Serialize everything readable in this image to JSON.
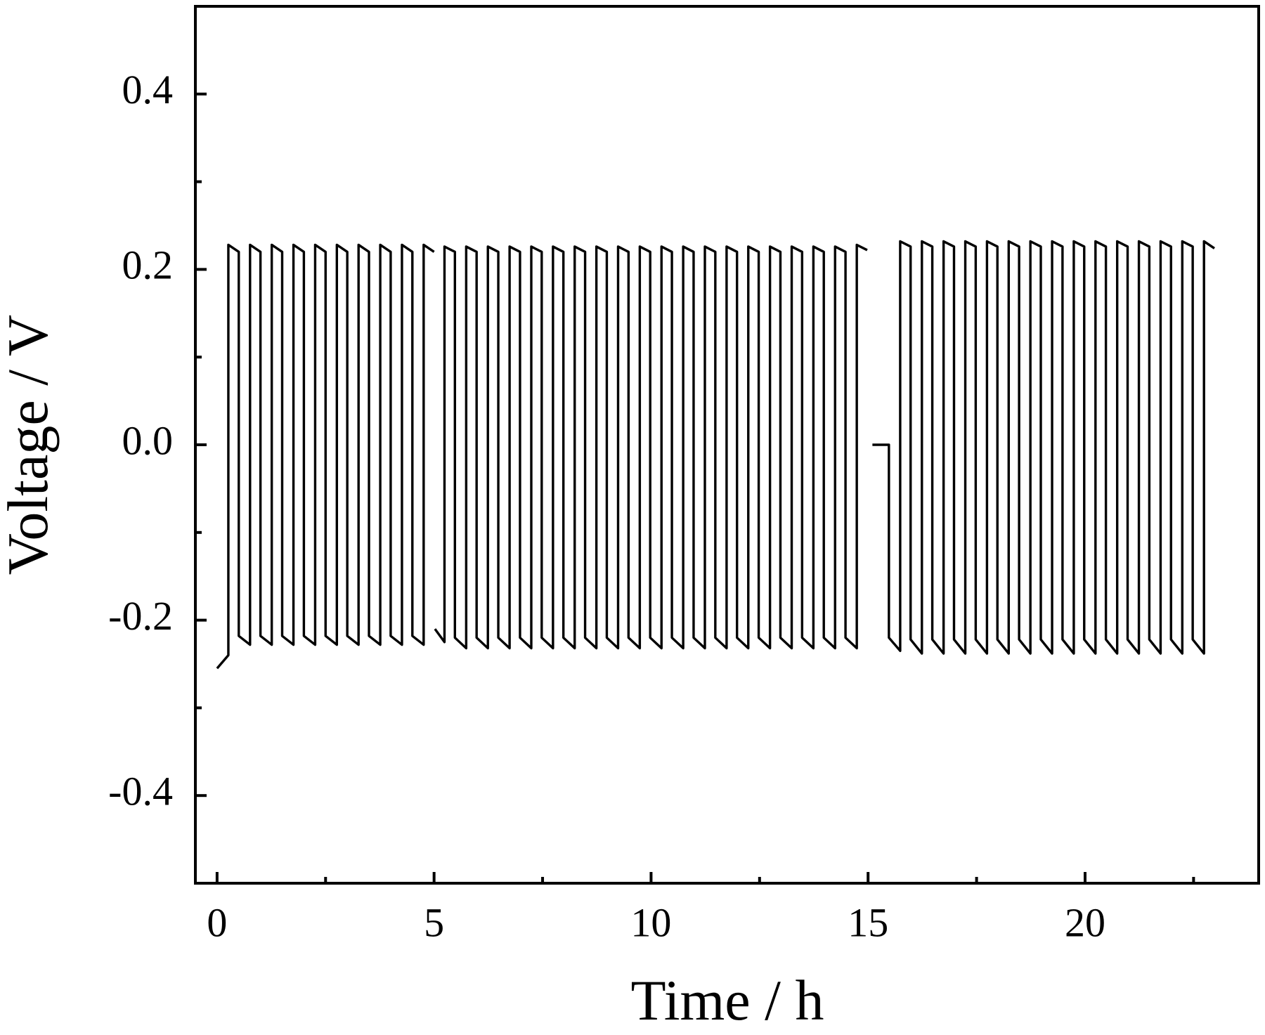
{
  "chart_data": {
    "type": "line",
    "x_label": "Time / h",
    "y_label": "Voltage / V",
    "xlim": [
      -0.5,
      24
    ],
    "ylim": [
      -0.5,
      0.5
    ],
    "xticks": [
      0,
      5,
      10,
      15,
      20
    ],
    "xminorticks": [
      2.5,
      7.5,
      12.5,
      17.5,
      22.5
    ],
    "yticks": [
      0.4,
      0.2,
      {
        "value": 0,
        "label": "0.0"
      },
      -0.2,
      -0.4
    ],
    "yminorticks": [
      -0.3,
      -0.1,
      0.1,
      0.3
    ],
    "series": [
      {
        "color": "#000000",
        "x": [
          0,
          0.26,
          0.26,
          0.5,
          0.5,
          0.76,
          0.76,
          1.0,
          1.0,
          1.26,
          1.26,
          1.5,
          1.5,
          1.76,
          1.76,
          2.0,
          2.0,
          2.26,
          2.26,
          2.5,
          2.5,
          2.76,
          2.76,
          3.0,
          3.0,
          3.26,
          3.26,
          3.5,
          3.5,
          3.76,
          3.76,
          4.0,
          4.0,
          4.26,
          4.26,
          4.5,
          4.5,
          4.76,
          4.76,
          5.0,
          5.01,
          5.02,
          5.24,
          5.24,
          5.48,
          5.48,
          5.74,
          5.74,
          5.98,
          5.98,
          6.24,
          6.24,
          6.48,
          6.48,
          6.74,
          6.74,
          6.98,
          6.98,
          7.24,
          7.24,
          7.48,
          7.48,
          7.74,
          7.74,
          7.98,
          7.98,
          8.24,
          8.24,
          8.48,
          8.48,
          8.74,
          8.74,
          8.98,
          8.98,
          9.24,
          9.24,
          9.48,
          9.48,
          9.74,
          9.74,
          9.98,
          9.98,
          10.24,
          10.24,
          10.48,
          10.48,
          10.74,
          10.74,
          10.98,
          10.98,
          11.24,
          11.24,
          11.48,
          11.48,
          11.74,
          11.74,
          11.98,
          11.98,
          12.24,
          12.24,
          12.48,
          12.48,
          12.74,
          12.74,
          12.98,
          12.98,
          13.24,
          13.24,
          13.48,
          13.48,
          13.74,
          13.74,
          13.98,
          13.98,
          14.24,
          14.24,
          14.48,
          14.48,
          14.74,
          14.74,
          14.98,
          15.04,
          15.1,
          15.48,
          15.48,
          15.74,
          15.74,
          15.98,
          15.98,
          16.24,
          16.24,
          16.48,
          16.48,
          16.74,
          16.74,
          16.98,
          16.98,
          17.24,
          17.24,
          17.48,
          17.48,
          17.74,
          17.74,
          17.98,
          17.98,
          18.24,
          18.24,
          18.48,
          18.48,
          18.74,
          18.74,
          18.98,
          18.98,
          19.24,
          19.24,
          19.48,
          19.48,
          19.74,
          19.74,
          19.98,
          19.98,
          20.24,
          20.24,
          20.48,
          20.48,
          20.74,
          20.74,
          20.98,
          20.98,
          21.24,
          21.24,
          21.48,
          21.48,
          21.74,
          21.74,
          21.98,
          21.98,
          22.24,
          22.24,
          22.48,
          22.48,
          22.74,
          22.74,
          22.98
        ],
        "values": [
          -0.255,
          -0.24,
          0.228,
          0.22,
          -0.218,
          -0.228,
          0.228,
          0.22,
          -0.218,
          -0.228,
          0.228,
          0.22,
          -0.218,
          -0.228,
          0.228,
          0.22,
          -0.218,
          -0.228,
          0.228,
          0.22,
          -0.218,
          -0.228,
          0.228,
          0.22,
          -0.218,
          -0.228,
          0.228,
          0.22,
          -0.218,
          -0.228,
          0.228,
          0.22,
          -0.218,
          -0.228,
          0.228,
          0.22,
          -0.218,
          -0.228,
          0.228,
          0.22,
          null,
          -0.21,
          -0.225,
          0.226,
          0.22,
          -0.22,
          -0.232,
          0.226,
          0.22,
          -0.22,
          -0.232,
          0.226,
          0.22,
          -0.22,
          -0.232,
          0.226,
          0.22,
          -0.22,
          -0.232,
          0.226,
          0.22,
          -0.22,
          -0.232,
          0.226,
          0.22,
          -0.22,
          -0.232,
          0.226,
          0.22,
          -0.22,
          -0.232,
          0.226,
          0.22,
          -0.22,
          -0.232,
          0.226,
          0.22,
          -0.22,
          -0.232,
          0.226,
          0.22,
          -0.22,
          -0.232,
          0.226,
          0.22,
          -0.22,
          -0.232,
          0.226,
          0.22,
          -0.22,
          -0.232,
          0.226,
          0.22,
          -0.22,
          -0.232,
          0.226,
          0.22,
          -0.22,
          -0.232,
          0.226,
          0.22,
          -0.22,
          -0.232,
          0.226,
          0.22,
          -0.22,
          -0.232,
          0.226,
          0.22,
          -0.22,
          -0.232,
          0.226,
          0.22,
          -0.22,
          -0.232,
          0.226,
          0.22,
          -0.22,
          -0.232,
          0.228,
          0.222,
          null,
          0,
          0,
          -0.22,
          -0.235,
          0.232,
          0.226,
          -0.222,
          -0.238,
          0.232,
          0.226,
          -0.222,
          -0.238,
          0.232,
          0.226,
          -0.222,
          -0.238,
          0.232,
          0.226,
          -0.222,
          -0.238,
          0.232,
          0.226,
          -0.222,
          -0.238,
          0.232,
          0.226,
          -0.222,
          -0.238,
          0.232,
          0.226,
          -0.222,
          -0.238,
          0.232,
          0.226,
          -0.222,
          -0.238,
          0.232,
          0.226,
          -0.222,
          -0.238,
          0.232,
          0.226,
          -0.222,
          -0.238,
          0.232,
          0.226,
          -0.222,
          -0.238,
          0.232,
          0.226,
          -0.222,
          -0.238,
          0.232,
          0.226,
          -0.222,
          -0.238,
          0.232,
          0.226,
          -0.222,
          -0.238,
          0.232,
          0.224
        ]
      }
    ]
  }
}
